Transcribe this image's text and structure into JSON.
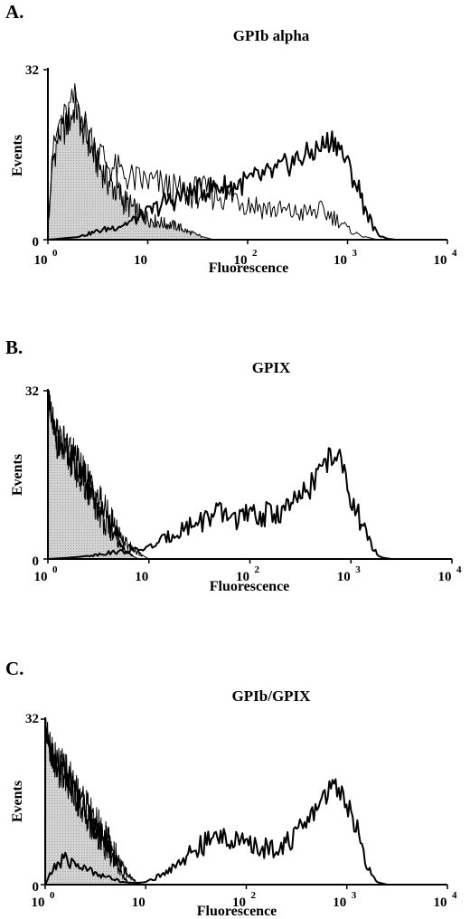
{
  "chart_data": [
    {
      "type": "line",
      "panel": "A.",
      "title": "GPIb alpha",
      "xlabel": "Fluorescence",
      "ylabel": "Events",
      "x_scale": "log",
      "xlim": [
        1,
        10000
      ],
      "ylim": [
        0,
        32
      ],
      "y_ticks": [
        "0",
        "32"
      ],
      "x_ticks": [
        {
          "base": "10",
          "exp": "0"
        },
        {
          "base": "10",
          "exp": ""
        },
        {
          "base": "10",
          "exp": "2"
        },
        {
          "base": "10",
          "exp": "3"
        },
        {
          "base": "10",
          "exp": "4"
        }
      ],
      "series": [
        {
          "style": "shaded",
          "x": [
            1,
            1.1,
            1.3,
            1.5,
            1.7,
            1.9,
            2.2,
            2.6,
            3,
            3.5,
            4,
            5,
            6,
            7,
            8,
            10,
            12,
            15,
            20,
            25,
            30,
            35,
            40,
            45
          ],
          "y": [
            2,
            14,
            20,
            21,
            23,
            25,
            21,
            18,
            15,
            13,
            11,
            9,
            7,
            6,
            5,
            4,
            3.5,
            3,
            2.5,
            1.5,
            1,
            0.6,
            0.3,
            0
          ]
        },
        {
          "style": "thin",
          "x": [
            1,
            1.1,
            1.3,
            1.5,
            1.7,
            1.9,
            2.2,
            2.6,
            3,
            3.5,
            4,
            5,
            6,
            8,
            10,
            15,
            20,
            30,
            50,
            80,
            100,
            150,
            200,
            300,
            400,
            500,
            700,
            900,
            1000,
            1200,
            1500,
            1800,
            2000
          ],
          "y": [
            3,
            15,
            22,
            23,
            25,
            27,
            23,
            20,
            18,
            16,
            14,
            13,
            12,
            11,
            11,
            10,
            9,
            9,
            8.5,
            8,
            7,
            6,
            5.5,
            5,
            5,
            5.5,
            4.5,
            3,
            2,
            1.2,
            0.6,
            0.2,
            0
          ]
        },
        {
          "style": "thick",
          "x": [
            1,
            1.5,
            2,
            3,
            5,
            7,
            10,
            15,
            20,
            30,
            50,
            70,
            100,
            150,
            200,
            300,
            400,
            500,
            600,
            700,
            800,
            900,
            1000,
            1200,
            1500,
            1800,
            2000,
            2500,
            3000
          ],
          "y": [
            0,
            0.3,
            0.5,
            1.5,
            2.5,
            3.5,
            5,
            7,
            8,
            9,
            10,
            10,
            11,
            12,
            13,
            15,
            16,
            17,
            18,
            19,
            18,
            16,
            14,
            11,
            6,
            2.5,
            1,
            0.2,
            0
          ]
        }
      ]
    },
    {
      "type": "line",
      "panel": "B.",
      "title": "GPIX",
      "xlabel": "Fluorescence",
      "ylabel": "Events",
      "x_scale": "log",
      "xlim": [
        1,
        10000
      ],
      "ylim": [
        0,
        32
      ],
      "y_ticks": [
        "0",
        "32"
      ],
      "x_ticks": [
        {
          "base": "10",
          "exp": "0"
        },
        {
          "base": "10",
          "exp": ""
        },
        {
          "base": "10",
          "exp": "2"
        },
        {
          "base": "10",
          "exp": "3"
        },
        {
          "base": "10",
          "exp": "4"
        }
      ],
      "series": [
        {
          "style": "shaded",
          "x": [
            1,
            1.05,
            1.15,
            1.3,
            1.5,
            1.8,
            2,
            2.5,
            3,
            3.5,
            4,
            5,
            6,
            7,
            8
          ],
          "y": [
            30,
            28,
            24,
            21,
            20,
            18,
            16,
            13,
            10,
            8,
            6,
            3,
            1.5,
            0.5,
            0
          ]
        },
        {
          "style": "thin",
          "x": [
            1,
            1.05,
            1.15,
            1.3,
            1.5,
            1.8,
            2,
            2.5,
            3,
            3.5,
            4,
            5,
            6,
            7,
            8,
            9,
            10
          ],
          "y": [
            32,
            30,
            26,
            23,
            22,
            20,
            18,
            15,
            12,
            10,
            8,
            5,
            3,
            2,
            1,
            0.5,
            0
          ]
        },
        {
          "style": "thick",
          "x": [
            1,
            1.5,
            2,
            3,
            4,
            6,
            8,
            10,
            15,
            20,
            30,
            40,
            50,
            70,
            100,
            150,
            200,
            300,
            400,
            500,
            600,
            700,
            800,
            900,
            1000,
            1200,
            1500,
            1800,
            2000,
            2500
          ],
          "y": [
            0,
            0.2,
            0.4,
            0.8,
            1.2,
            1.5,
            1.8,
            2.2,
            4,
            5.5,
            7,
            8,
            8.5,
            8,
            8,
            8.5,
            9,
            11,
            14,
            17,
            19,
            20,
            18,
            15,
            12,
            8,
            3.5,
            1,
            0.3,
            0
          ]
        }
      ]
    },
    {
      "type": "line",
      "panel": "C.",
      "title": "GPIb/GPIX",
      "xlabel": "Fluorescence",
      "ylabel": "Events",
      "x_scale": "log",
      "xlim": [
        1,
        10000
      ],
      "ylim": [
        0,
        32
      ],
      "y_ticks": [
        "0",
        "32"
      ],
      "x_ticks": [
        {
          "base": "10",
          "exp": "0"
        },
        {
          "base": "10",
          "exp": ""
        },
        {
          "base": "10",
          "exp": "2"
        },
        {
          "base": "10",
          "exp": "3"
        },
        {
          "base": "10",
          "exp": "4"
        }
      ],
      "series": [
        {
          "style": "shaded",
          "x": [
            1,
            1.05,
            1.15,
            1.3,
            1.5,
            1.8,
            2,
            2.5,
            3,
            3.5,
            4,
            5,
            6,
            7
          ],
          "y": [
            31,
            29,
            25,
            22,
            21,
            19,
            17,
            14,
            11,
            9,
            7,
            4,
            1.5,
            0
          ]
        },
        {
          "style": "thin",
          "x": [
            1,
            1.05,
            1.15,
            1.3,
            1.5,
            1.8,
            2,
            2.5,
            3,
            3.5,
            4,
            5,
            6,
            7,
            8,
            9
          ],
          "y": [
            32,
            30,
            26,
            24,
            23,
            21,
            19,
            16,
            13,
            11,
            9,
            6,
            3,
            1.5,
            0.5,
            0
          ]
        },
        {
          "style": "thick",
          "x": [
            1,
            1.2,
            1.5,
            2,
            2.5,
            3,
            4,
            5,
            6,
            8,
            10,
            15,
            20,
            30,
            40,
            50,
            60,
            70,
            100,
            150,
            200,
            300,
            400,
            500,
            600,
            700,
            800,
            900,
            1000,
            1200,
            1500,
            1800,
            2000,
            2500
          ],
          "y": [
            0,
            3,
            5,
            4,
            3,
            2.5,
            1.5,
            1,
            0.5,
            0.3,
            0.5,
            2,
            4,
            6.5,
            8,
            9,
            9.5,
            9,
            7.5,
            7,
            7.5,
            9,
            12,
            15,
            17,
            19,
            19,
            18,
            16,
            12,
            5,
            1.5,
            0.5,
            0
          ]
        }
      ]
    }
  ]
}
